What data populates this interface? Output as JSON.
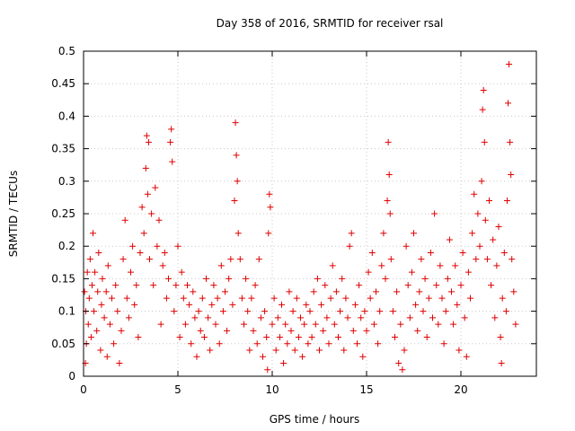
{
  "chart_data": {
    "type": "scatter",
    "title": "Day 358 of 2016, SRMTID for receiver rsal",
    "xlabel": "GPS time / hours",
    "ylabel": "SRMTID / TECUs",
    "xlim": [
      0,
      24
    ],
    "ylim": [
      0,
      0.5
    ],
    "xticks": [
      0,
      5,
      10,
      15,
      20
    ],
    "xtick_labels": [
      "0",
      "5",
      "10",
      "15",
      "20"
    ],
    "yticks": [
      0,
      0.05,
      0.1,
      0.15,
      0.2,
      0.25,
      0.3,
      0.35,
      0.4,
      0.45,
      0.5
    ],
    "ytick_labels": [
      "0",
      "0.05",
      "0.1",
      "0.15",
      "0.2",
      "0.25",
      "0.3",
      "0.35",
      "0.4",
      "0.45",
      "0.5"
    ],
    "grid": true,
    "marker": "plus",
    "color": "#e00000",
    "series": [
      {
        "name": "SRMTID",
        "points": [
          [
            0.05,
            0.13
          ],
          [
            0.1,
            0.02
          ],
          [
            0.12,
            0.1
          ],
          [
            0.15,
            0.05
          ],
          [
            0.2,
            0.16
          ],
          [
            0.25,
            0.08
          ],
          [
            0.3,
            0.12
          ],
          [
            0.35,
            0.18
          ],
          [
            0.4,
            0.06
          ],
          [
            0.45,
            0.14
          ],
          [
            0.5,
            0.22
          ],
          [
            0.55,
            0.1
          ],
          [
            0.6,
            0.16
          ],
          [
            0.7,
            0.07
          ],
          [
            0.75,
            0.13
          ],
          [
            0.8,
            0.19
          ],
          [
            0.9,
            0.04
          ],
          [
            0.95,
            0.11
          ],
          [
            1.0,
            0.15
          ],
          [
            1.1,
            0.09
          ],
          [
            1.2,
            0.13
          ],
          [
            1.25,
            0.03
          ],
          [
            1.3,
            0.17
          ],
          [
            1.4,
            0.08
          ],
          [
            1.5,
            0.12
          ],
          [
            1.6,
            0.05
          ],
          [
            1.7,
            0.14
          ],
          [
            1.8,
            0.1
          ],
          [
            1.9,
            0.02
          ],
          [
            2.0,
            0.07
          ],
          [
            2.1,
            0.18
          ],
          [
            2.2,
            0.24
          ],
          [
            2.3,
            0.12
          ],
          [
            2.4,
            0.09
          ],
          [
            2.5,
            0.16
          ],
          [
            2.6,
            0.2
          ],
          [
            2.7,
            0.11
          ],
          [
            2.8,
            0.14
          ],
          [
            2.9,
            0.06
          ],
          [
            3.0,
            0.19
          ],
          [
            3.1,
            0.26
          ],
          [
            3.2,
            0.22
          ],
          [
            3.3,
            0.32
          ],
          [
            3.35,
            0.37
          ],
          [
            3.4,
            0.28
          ],
          [
            3.45,
            0.36
          ],
          [
            3.5,
            0.18
          ],
          [
            3.6,
            0.25
          ],
          [
            3.7,
            0.14
          ],
          [
            3.8,
            0.29
          ],
          [
            3.9,
            0.2
          ],
          [
            4.0,
            0.24
          ],
          [
            4.1,
            0.08
          ],
          [
            4.2,
            0.17
          ],
          [
            4.3,
            0.19
          ],
          [
            4.4,
            0.12
          ],
          [
            4.5,
            0.15
          ],
          [
            4.6,
            0.36
          ],
          [
            4.65,
            0.38
          ],
          [
            4.7,
            0.33
          ],
          [
            4.8,
            0.1
          ],
          [
            4.9,
            0.14
          ],
          [
            5.0,
            0.2
          ],
          [
            5.1,
            0.06
          ],
          [
            5.2,
            0.16
          ],
          [
            5.3,
            0.12
          ],
          [
            5.4,
            0.08
          ],
          [
            5.5,
            0.14
          ],
          [
            5.6,
            0.11
          ],
          [
            5.7,
            0.05
          ],
          [
            5.8,
            0.13
          ],
          [
            5.9,
            0.09
          ],
          [
            6.0,
            0.03
          ],
          [
            6.1,
            0.1
          ],
          [
            6.2,
            0.07
          ],
          [
            6.3,
            0.12
          ],
          [
            6.4,
            0.06
          ],
          [
            6.5,
            0.15
          ],
          [
            6.6,
            0.09
          ],
          [
            6.7,
            0.04
          ],
          [
            6.8,
            0.11
          ],
          [
            6.9,
            0.14
          ],
          [
            7.0,
            0.08
          ],
          [
            7.1,
            0.12
          ],
          [
            7.2,
            0.05
          ],
          [
            7.3,
            0.17
          ],
          [
            7.4,
            0.1
          ],
          [
            7.5,
            0.13
          ],
          [
            7.6,
            0.07
          ],
          [
            7.7,
            0.15
          ],
          [
            7.8,
            0.18
          ],
          [
            7.9,
            0.11
          ],
          [
            8.0,
            0.27
          ],
          [
            8.05,
            0.39
          ],
          [
            8.1,
            0.34
          ],
          [
            8.15,
            0.3
          ],
          [
            8.2,
            0.22
          ],
          [
            8.3,
            0.18
          ],
          [
            8.4,
            0.12
          ],
          [
            8.5,
            0.08
          ],
          [
            8.6,
            0.15
          ],
          [
            8.7,
            0.1
          ],
          [
            8.8,
            0.04
          ],
          [
            8.9,
            0.12
          ],
          [
            9.0,
            0.07
          ],
          [
            9.1,
            0.14
          ],
          [
            9.2,
            0.05
          ],
          [
            9.3,
            0.18
          ],
          [
            9.4,
            0.09
          ],
          [
            9.5,
            0.03
          ],
          [
            9.6,
            0.1
          ],
          [
            9.7,
            0.06
          ],
          [
            9.75,
            0.01
          ],
          [
            9.8,
            0.22
          ],
          [
            9.85,
            0.28
          ],
          [
            9.9,
            0.26
          ],
          [
            10.0,
            0.08
          ],
          [
            10.1,
            0.12
          ],
          [
            10.2,
            0.04
          ],
          [
            10.3,
            0.09
          ],
          [
            10.4,
            0.06
          ],
          [
            10.5,
            0.11
          ],
          [
            10.6,
            0.02
          ],
          [
            10.7,
            0.08
          ],
          [
            10.8,
            0.05
          ],
          [
            10.9,
            0.13
          ],
          [
            11.0,
            0.07
          ],
          [
            11.1,
            0.1
          ],
          [
            11.2,
            0.04
          ],
          [
            11.3,
            0.12
          ],
          [
            11.4,
            0.06
          ],
          [
            11.5,
            0.09
          ],
          [
            11.6,
            0.03
          ],
          [
            11.7,
            0.08
          ],
          [
            11.8,
            0.11
          ],
          [
            11.9,
            0.05
          ],
          [
            12.0,
            0.1
          ],
          [
            12.1,
            0.06
          ],
          [
            12.2,
            0.13
          ],
          [
            12.3,
            0.08
          ],
          [
            12.4,
            0.15
          ],
          [
            12.5,
            0.04
          ],
          [
            12.6,
            0.11
          ],
          [
            12.7,
            0.07
          ],
          [
            12.8,
            0.14
          ],
          [
            12.9,
            0.09
          ],
          [
            13.0,
            0.05
          ],
          [
            13.1,
            0.12
          ],
          [
            13.2,
            0.17
          ],
          [
            13.3,
            0.08
          ],
          [
            13.4,
            0.13
          ],
          [
            13.5,
            0.06
          ],
          [
            13.6,
            0.1
          ],
          [
            13.7,
            0.15
          ],
          [
            13.8,
            0.04
          ],
          [
            13.9,
            0.12
          ],
          [
            14.0,
            0.09
          ],
          [
            14.1,
            0.2
          ],
          [
            14.2,
            0.22
          ],
          [
            14.3,
            0.07
          ],
          [
            14.4,
            0.11
          ],
          [
            14.5,
            0.05
          ],
          [
            14.6,
            0.14
          ],
          [
            14.7,
            0.09
          ],
          [
            14.8,
            0.03
          ],
          [
            14.9,
            0.1
          ],
          [
            15.0,
            0.07
          ],
          [
            15.1,
            0.16
          ],
          [
            15.2,
            0.12
          ],
          [
            15.3,
            0.19
          ],
          [
            15.4,
            0.08
          ],
          [
            15.5,
            0.13
          ],
          [
            15.6,
            0.05
          ],
          [
            15.7,
            0.1
          ],
          [
            15.8,
            0.17
          ],
          [
            15.9,
            0.22
          ],
          [
            16.0,
            0.15
          ],
          [
            16.1,
            0.27
          ],
          [
            16.15,
            0.36
          ],
          [
            16.2,
            0.31
          ],
          [
            16.25,
            0.25
          ],
          [
            16.3,
            0.18
          ],
          [
            16.4,
            0.1
          ],
          [
            16.5,
            0.06
          ],
          [
            16.6,
            0.13
          ],
          [
            16.7,
            0.02
          ],
          [
            16.8,
            0.08
          ],
          [
            16.9,
            0.01
          ],
          [
            17.0,
            0.04
          ],
          [
            17.1,
            0.2
          ],
          [
            17.2,
            0.14
          ],
          [
            17.3,
            0.09
          ],
          [
            17.4,
            0.16
          ],
          [
            17.5,
            0.22
          ],
          [
            17.6,
            0.11
          ],
          [
            17.7,
            0.07
          ],
          [
            17.8,
            0.13
          ],
          [
            17.9,
            0.18
          ],
          [
            18.0,
            0.1
          ],
          [
            18.1,
            0.15
          ],
          [
            18.2,
            0.06
          ],
          [
            18.3,
            0.12
          ],
          [
            18.4,
            0.19
          ],
          [
            18.5,
            0.09
          ],
          [
            18.6,
            0.25
          ],
          [
            18.7,
            0.14
          ],
          [
            18.8,
            0.08
          ],
          [
            18.9,
            0.17
          ],
          [
            19.0,
            0.12
          ],
          [
            19.1,
            0.05
          ],
          [
            19.2,
            0.1
          ],
          [
            19.3,
            0.15
          ],
          [
            19.4,
            0.21
          ],
          [
            19.5,
            0.13
          ],
          [
            19.6,
            0.08
          ],
          [
            19.7,
            0.17
          ],
          [
            19.8,
            0.11
          ],
          [
            19.9,
            0.04
          ],
          [
            20.0,
            0.14
          ],
          [
            20.1,
            0.19
          ],
          [
            20.2,
            0.09
          ],
          [
            20.3,
            0.03
          ],
          [
            20.4,
            0.16
          ],
          [
            20.5,
            0.12
          ],
          [
            20.6,
            0.22
          ],
          [
            20.7,
            0.28
          ],
          [
            20.8,
            0.18
          ],
          [
            20.9,
            0.25
          ],
          [
            21.0,
            0.2
          ],
          [
            21.1,
            0.3
          ],
          [
            21.15,
            0.41
          ],
          [
            21.2,
            0.44
          ],
          [
            21.25,
            0.36
          ],
          [
            21.3,
            0.24
          ],
          [
            21.4,
            0.18
          ],
          [
            21.5,
            0.27
          ],
          [
            21.6,
            0.14
          ],
          [
            21.7,
            0.21
          ],
          [
            21.8,
            0.09
          ],
          [
            21.9,
            0.17
          ],
          [
            22.0,
            0.23
          ],
          [
            22.1,
            0.06
          ],
          [
            22.15,
            0.02
          ],
          [
            22.2,
            0.12
          ],
          [
            22.3,
            0.19
          ],
          [
            22.4,
            0.1
          ],
          [
            22.45,
            0.27
          ],
          [
            22.5,
            0.42
          ],
          [
            22.55,
            0.48
          ],
          [
            22.6,
            0.36
          ],
          [
            22.65,
            0.31
          ],
          [
            22.7,
            0.18
          ],
          [
            22.8,
            0.13
          ],
          [
            22.9,
            0.08
          ]
        ]
      }
    ]
  }
}
